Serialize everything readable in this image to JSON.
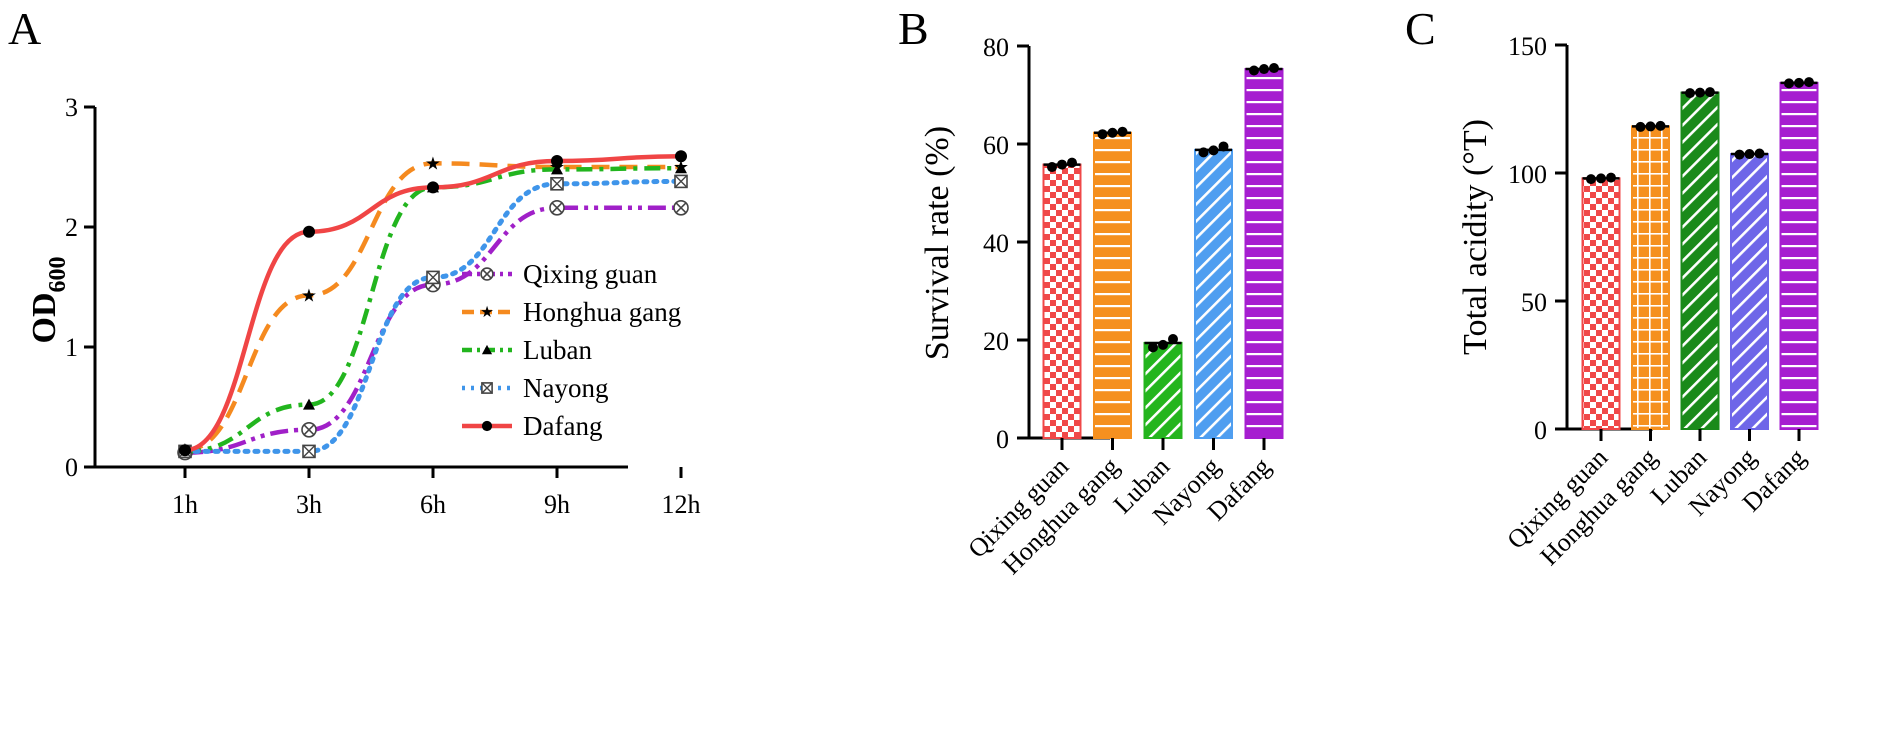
{
  "chart_data": [
    {
      "type": "line",
      "panel": "A",
      "xlabel": "",
      "ylabel": "OD",
      "ylabel_sub": "600",
      "categories": [
        "1h",
        "3h",
        "6h",
        "9h",
        "12h"
      ],
      "ylim": [
        0,
        3
      ],
      "yticks": [
        0,
        1,
        2,
        3
      ],
      "legend_position": "center-right",
      "series": [
        {
          "name": "Qixing guan",
          "color": "#a020c8",
          "dash": "dashdotdot",
          "marker": "circle-x",
          "values": [
            0.12,
            0.31,
            1.52,
            2.16,
            2.16
          ]
        },
        {
          "name": "Honghua gang",
          "color": "#f58a1f",
          "dash": "dashed",
          "marker": "star",
          "values": [
            0.14,
            1.43,
            2.53,
            2.5,
            2.5
          ]
        },
        {
          "name": "Luban",
          "color": "#22b51e",
          "dash": "dashdot",
          "marker": "triangle",
          "values": [
            0.13,
            0.52,
            2.33,
            2.48,
            2.49
          ]
        },
        {
          "name": "Nayong",
          "color": "#3f95ea",
          "dash": "dotted",
          "marker": "square-x",
          "values": [
            0.13,
            0.13,
            1.58,
            2.36,
            2.38
          ]
        },
        {
          "name": "Dafang",
          "color": "#f04545",
          "dash": "solid",
          "marker": "dot",
          "values": [
            0.14,
            1.96,
            2.33,
            2.55,
            2.59
          ]
        }
      ]
    },
    {
      "type": "bar",
      "panel": "B",
      "xlabel": "",
      "ylabel": "Survival rate (%)",
      "categories": [
        "Qixing guan",
        "Honghua gang",
        "Luban",
        "Nayong",
        "Dafang"
      ],
      "colors": [
        "#f04848",
        "#f5901f",
        "#24b51e",
        "#4f9ef0",
        "#a61ed0"
      ],
      "patterns": [
        "checker",
        "horizontal-lines",
        "diagonal-lines",
        "diagonal-lines",
        "horizontal-lines"
      ],
      "values": [
        55.8,
        62.3,
        19.4,
        58.8,
        75.3
      ],
      "points": [
        [
          55.3,
          55.8,
          56.2
        ],
        [
          62.0,
          62.3,
          62.5
        ],
        [
          18.5,
          19.0,
          20.2
        ],
        [
          58.3,
          58.7,
          59.5
        ],
        [
          75.0,
          75.3,
          75.5
        ]
      ],
      "ylim": [
        0,
        80
      ],
      "yticks": [
        0,
        20,
        40,
        60,
        80
      ]
    },
    {
      "type": "bar",
      "panel": "C",
      "xlabel": "",
      "ylabel": "Total acidity (°T)",
      "categories": [
        "Qixing guan",
        "Honghua gang",
        "Luban",
        "Nayong",
        "Dafang"
      ],
      "colors": [
        "#f04848",
        "#f5901f",
        "#1a8a1a",
        "#6e66e8",
        "#a61ed0"
      ],
      "patterns": [
        "checker",
        "grid",
        "diagonal-lines",
        "diagonal-lines",
        "horizontal-lines"
      ],
      "values": [
        97.9,
        118.2,
        131.4,
        107.4,
        135.2
      ],
      "points": [
        [
          97.6,
          97.9,
          98.2
        ],
        [
          118.0,
          118.2,
          118.4
        ],
        [
          131.2,
          131.4,
          131.6
        ],
        [
          107.2,
          107.4,
          107.6
        ],
        [
          135.0,
          135.2,
          135.5
        ]
      ],
      "ylim": [
        0,
        150
      ],
      "yticks": [
        0,
        50,
        100,
        150
      ]
    }
  ]
}
